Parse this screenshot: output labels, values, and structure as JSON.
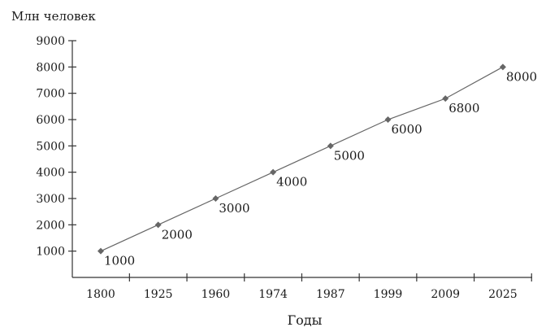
{
  "chart_data": {
    "type": "line",
    "title": "",
    "ylabel": "Млн человек",
    "xlabel": "Годы",
    "categories": [
      "1800",
      "1925",
      "1960",
      "1974",
      "1987",
      "1999",
      "2009",
      "2025"
    ],
    "series": [
      {
        "values": [
          1000,
          2000,
          3000,
          4000,
          5000,
          6000,
          6800,
          8000
        ]
      }
    ],
    "data_labels": [
      "1000",
      "2000",
      "3000",
      "4000",
      "5000",
      "6000",
      "6800",
      "8000"
    ],
    "yticks": [
      1000,
      2000,
      3000,
      4000,
      5000,
      6000,
      7000,
      8000,
      9000
    ],
    "ylim": [
      0,
      9000
    ],
    "grid": false,
    "legend": "none",
    "colors": {
      "line": "#666666",
      "marker": "#666666",
      "axis": "#333333"
    },
    "marker": "diamond"
  }
}
